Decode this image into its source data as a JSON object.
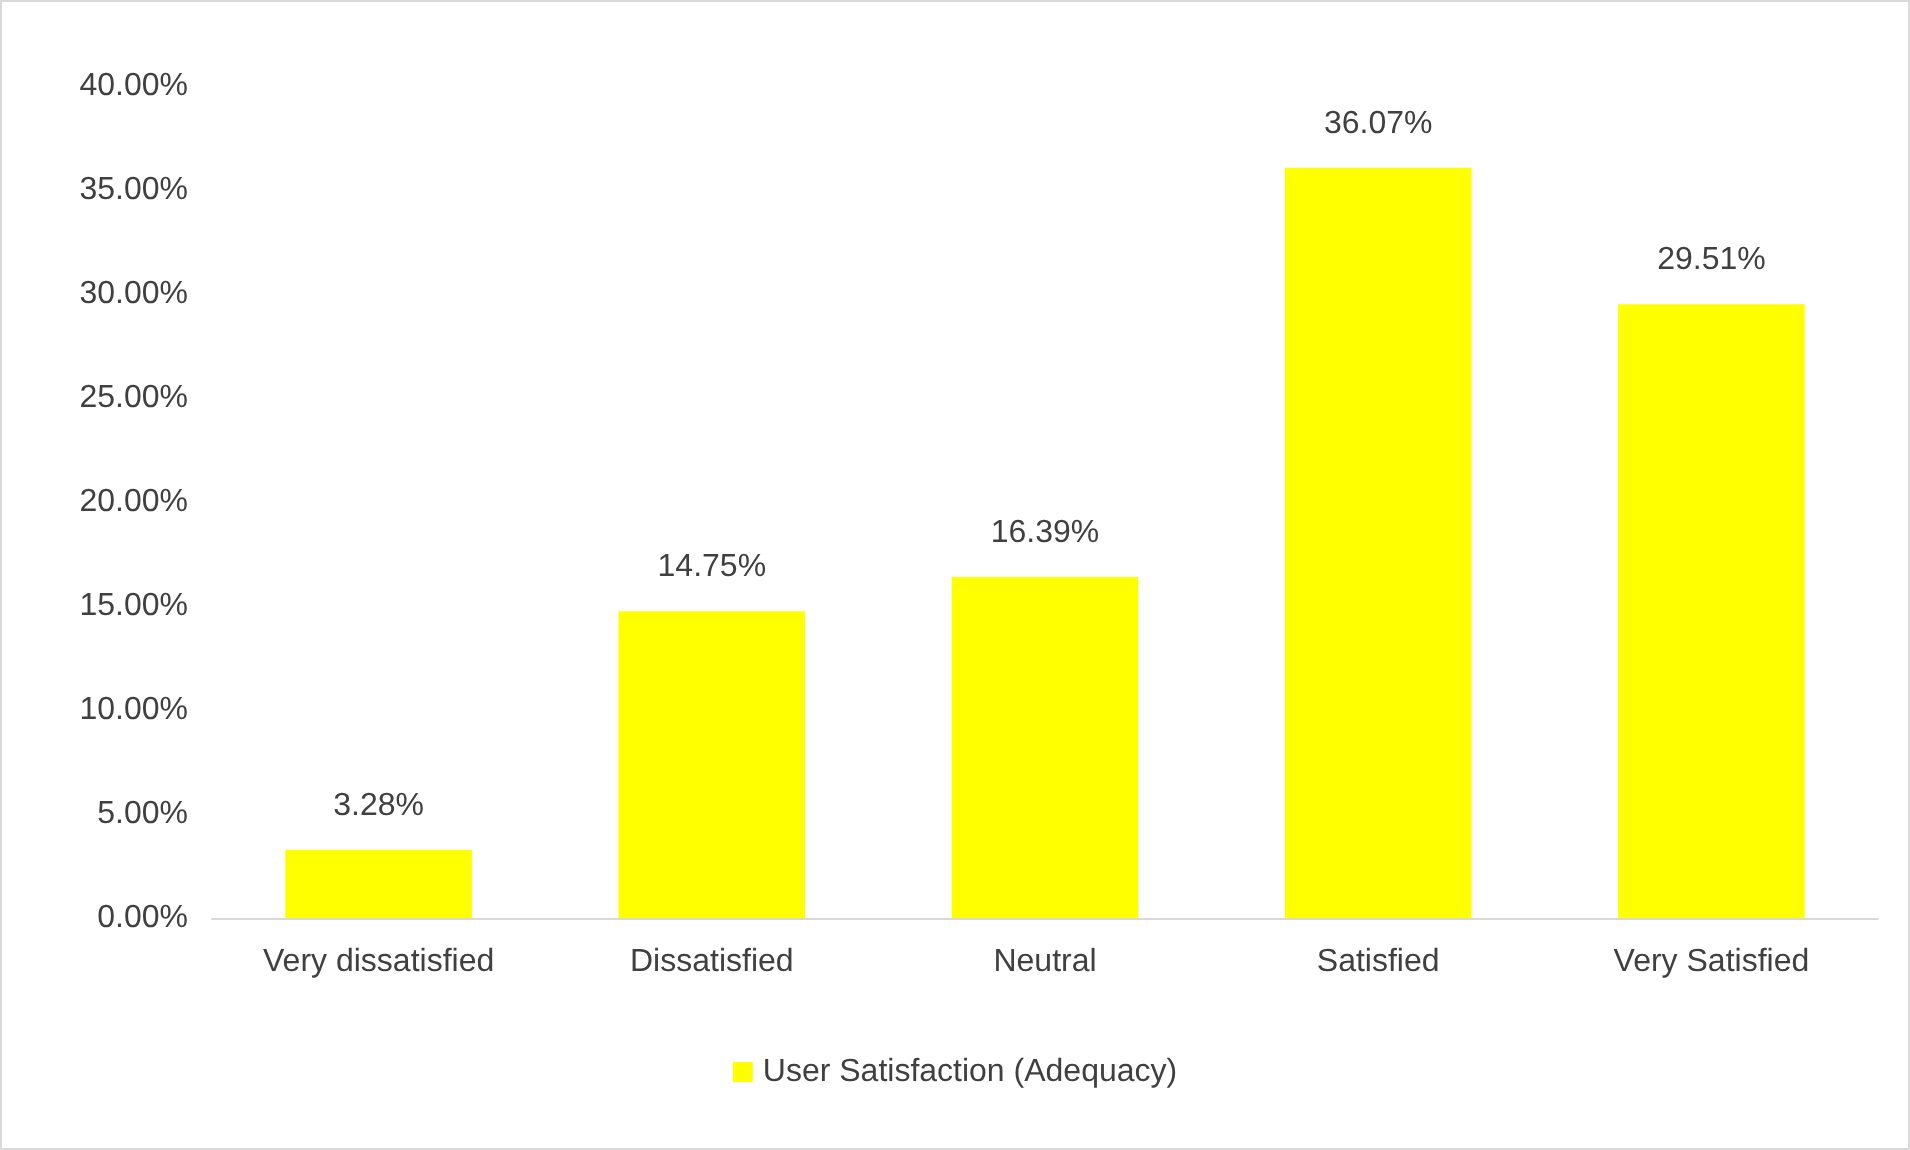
{
  "chart_data": {
    "type": "bar",
    "categories": [
      "Very dissatisfied",
      "Dissatisfied",
      "Neutral",
      "Satisfied",
      "Very Satisfied"
    ],
    "series": [
      {
        "name": "User Satisfaction (Adequacy)",
        "color": "#ffff00",
        "values": [
          3.28,
          14.75,
          16.39,
          36.07,
          29.51
        ],
        "value_labels": [
          "3.28%",
          "14.75%",
          "16.39%",
          "36.07%",
          "29.51%"
        ]
      }
    ],
    "ylim": [
      0,
      40
    ],
    "yticks": [
      {
        "value": 0,
        "label": "0.00%"
      },
      {
        "value": 5,
        "label": "5.00%"
      },
      {
        "value": 10,
        "label": "10.00%"
      },
      {
        "value": 15,
        "label": "15.00%"
      },
      {
        "value": 20,
        "label": "20.00%"
      },
      {
        "value": 25,
        "label": "25.00%"
      },
      {
        "value": 30,
        "label": "30.00%"
      },
      {
        "value": 35,
        "label": "35.00%"
      },
      {
        "value": 40,
        "label": "40.00%"
      }
    ],
    "grid": false,
    "legend": "bottom"
  }
}
